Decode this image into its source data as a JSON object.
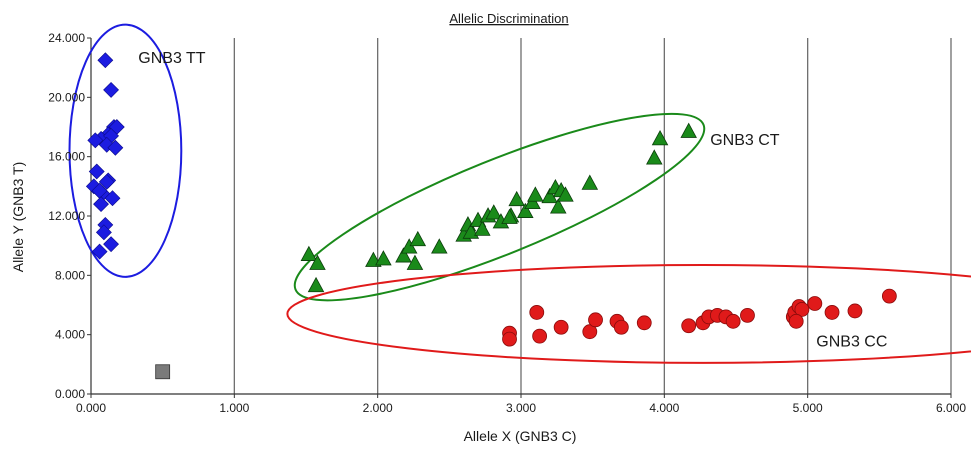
{
  "chart_data": {
    "type": "scatter",
    "title": "Allelic Discrimination",
    "xlabel": "Allele X (GNB3 C)",
    "ylabel": "Allele Y (GNB3 T)",
    "xlim": [
      0,
      6
    ],
    "ylim": [
      0,
      24
    ],
    "x_ticks": [
      "0.000",
      "1.000",
      "2.000",
      "3.000",
      "4.000",
      "5.000",
      "6.000"
    ],
    "y_ticks": [
      "0.000",
      "4.000",
      "8.000",
      "12.000",
      "16.000",
      "20.000",
      "24.000"
    ],
    "grid": {
      "vertical": true,
      "horizontal": false
    },
    "colors": {
      "tt": "#1c1ce0",
      "ct": "#1a8a1a",
      "cc": "#e01a1a",
      "ntc": "#7a7a7a"
    },
    "series": [
      {
        "name": "GNB3 TT",
        "marker": "diamond",
        "points": [
          [
            0.1,
            22.5
          ],
          [
            0.14,
            20.5
          ],
          [
            0.16,
            18.0
          ],
          [
            0.18,
            18.0
          ],
          [
            0.12,
            17.5
          ],
          [
            0.07,
            17.2
          ],
          [
            0.14,
            17.4
          ],
          [
            0.11,
            16.8
          ],
          [
            0.17,
            16.6
          ],
          [
            0.03,
            17.1
          ],
          [
            0.04,
            15.0
          ],
          [
            0.12,
            14.4
          ],
          [
            0.02,
            14.0
          ],
          [
            0.08,
            13.5
          ],
          [
            0.15,
            13.2
          ],
          [
            0.06,
            13.7
          ],
          [
            0.11,
            14.3
          ],
          [
            0.07,
            12.8
          ],
          [
            0.1,
            11.4
          ],
          [
            0.09,
            10.9
          ],
          [
            0.14,
            10.1
          ],
          [
            0.06,
            9.6
          ]
        ]
      },
      {
        "name": "GNB3 CT",
        "marker": "triangle",
        "points": [
          [
            1.52,
            9.4
          ],
          [
            1.58,
            8.8
          ],
          [
            1.57,
            7.3
          ],
          [
            1.97,
            9.0
          ],
          [
            2.04,
            9.1
          ],
          [
            2.18,
            9.3
          ],
          [
            2.22,
            9.9
          ],
          [
            2.28,
            10.4
          ],
          [
            2.26,
            8.8
          ],
          [
            2.43,
            9.9
          ],
          [
            2.6,
            10.7
          ],
          [
            2.63,
            11.4
          ],
          [
            2.65,
            10.9
          ],
          [
            2.7,
            11.7
          ],
          [
            2.73,
            11.1
          ],
          [
            2.77,
            12.0
          ],
          [
            2.81,
            12.2
          ],
          [
            2.86,
            11.6
          ],
          [
            2.93,
            12.0
          ],
          [
            2.97,
            13.1
          ],
          [
            3.03,
            12.3
          ],
          [
            3.08,
            12.9
          ],
          [
            3.1,
            13.4
          ],
          [
            3.2,
            13.3
          ],
          [
            3.24,
            13.9
          ],
          [
            3.26,
            12.6
          ],
          [
            3.28,
            13.7
          ],
          [
            3.31,
            13.4
          ],
          [
            3.48,
            14.2
          ],
          [
            3.93,
            15.9
          ],
          [
            3.97,
            17.2
          ],
          [
            4.17,
            17.7
          ],
          [
            2.92,
            11.9
          ]
        ]
      },
      {
        "name": "GNB3 CC",
        "marker": "circle",
        "points": [
          [
            2.92,
            4.1
          ],
          [
            2.92,
            3.7
          ],
          [
            3.11,
            5.5
          ],
          [
            3.13,
            3.9
          ],
          [
            3.28,
            4.5
          ],
          [
            3.48,
            4.2
          ],
          [
            3.52,
            5.0
          ],
          [
            3.67,
            4.9
          ],
          [
            3.7,
            4.5
          ],
          [
            3.86,
            4.8
          ],
          [
            4.17,
            4.6
          ],
          [
            4.27,
            4.8
          ],
          [
            4.31,
            5.2
          ],
          [
            4.37,
            5.3
          ],
          [
            4.43,
            5.2
          ],
          [
            4.48,
            4.9
          ],
          [
            4.58,
            5.3
          ],
          [
            4.9,
            5.2
          ],
          [
            4.91,
            5.5
          ],
          [
            4.94,
            5.9
          ],
          [
            4.96,
            5.7
          ],
          [
            5.05,
            6.1
          ],
          [
            5.17,
            5.5
          ],
          [
            5.33,
            5.6
          ],
          [
            5.57,
            6.6
          ],
          [
            4.92,
            4.9
          ]
        ]
      },
      {
        "name": "",
        "marker": "square",
        "points": [
          [
            0.5,
            1.5
          ]
        ]
      }
    ],
    "annotations": [
      {
        "id": "tt",
        "text": "GNB3 TT",
        "x": 0.33,
        "y": 22.3
      },
      {
        "id": "ct",
        "text": "GNB3 CT",
        "x": 4.32,
        "y": 16.8
      },
      {
        "id": "cc",
        "text": "GNB3 CC",
        "x": 5.06,
        "y": 3.2
      }
    ],
    "clusters": [
      {
        "id": "tt",
        "cx": 0.24,
        "cy": 16.4,
        "rx": 0.39,
        "ry": 8.5,
        "rot": 0
      },
      {
        "id": "ct",
        "cx": 2.85,
        "cy": 12.6,
        "rx": 1.78,
        "ry": 3.9,
        "rot": 0
      },
      {
        "id": "cc",
        "cx": 4.27,
        "cy": 5.4,
        "rx": 2.9,
        "ry": 3.3,
        "rot": 0
      }
    ]
  }
}
